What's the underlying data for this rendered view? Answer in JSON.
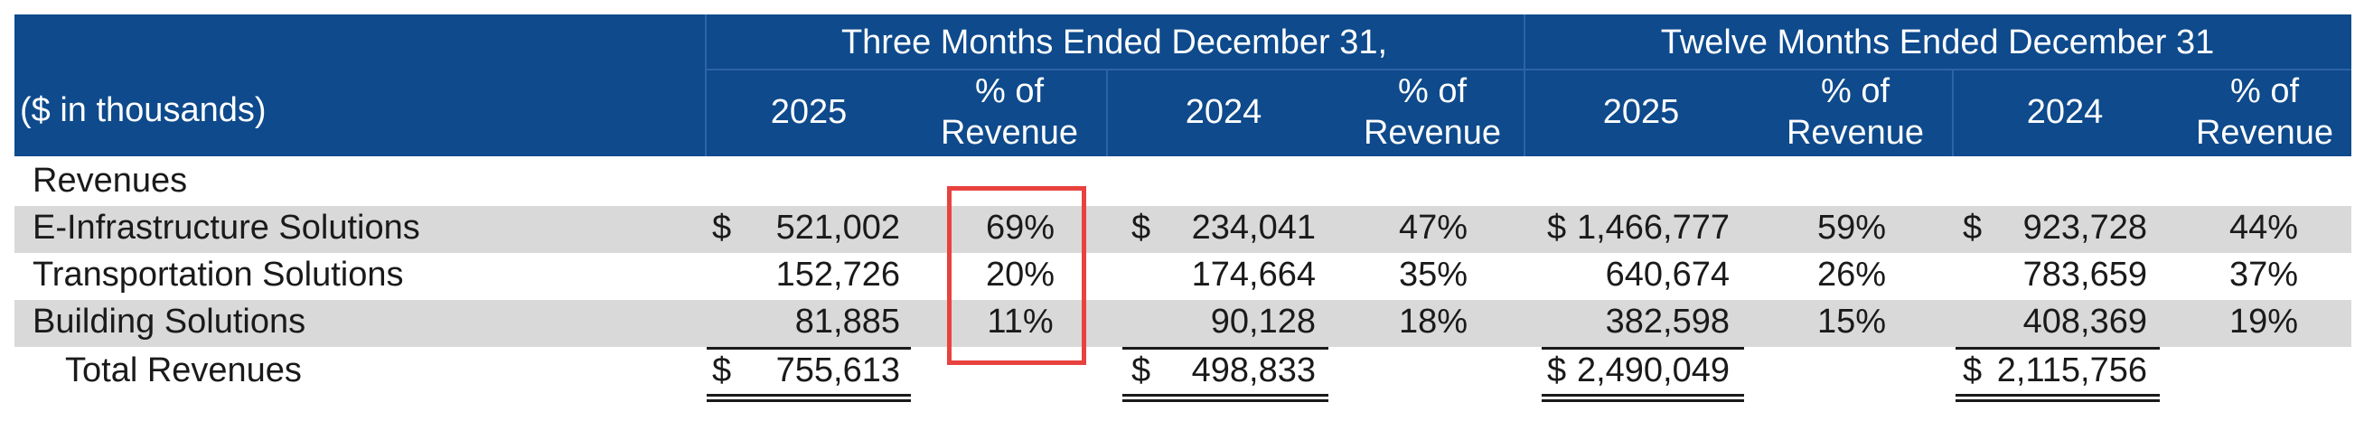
{
  "header": {
    "group_three_months": "Three Months Ended December 31,",
    "group_twelve_months": "Twelve Months Ended December 31",
    "units_label": "($ in thousands)",
    "columns": [
      {
        "label": "2025"
      },
      {
        "label": "% of\nRevenue"
      },
      {
        "label": "2024"
      },
      {
        "label": "% of\nRevenue"
      },
      {
        "label": "2025"
      },
      {
        "label": "% of\nRevenue"
      },
      {
        "label": "2024"
      },
      {
        "label": "% of\nRevenue"
      }
    ],
    "pct_line1": "% of",
    "pct_line2": "Revenue"
  },
  "currency_symbol": "$",
  "section_label": "Revenues",
  "rows": [
    {
      "label": "E-Infrastructure Solutions",
      "q2025": "521,002",
      "q2025_pct": "69%",
      "q2024": "234,041",
      "q2024_pct": "47%",
      "y2025": "1,466,777",
      "y2025_pct": "59%",
      "y2024": "923,728",
      "y2024_pct": "44%"
    },
    {
      "label": "Transportation Solutions",
      "q2025": "152,726",
      "q2025_pct": "20%",
      "q2024": "174,664",
      "q2024_pct": "35%",
      "y2025": "640,674",
      "y2025_pct": "26%",
      "y2024": "783,659",
      "y2024_pct": "37%"
    },
    {
      "label": "Building Solutions",
      "q2025": "81,885",
      "q2025_pct": "11%",
      "q2024": "90,128",
      "q2024_pct": "18%",
      "y2025": "382,598",
      "y2025_pct": "15%",
      "y2024": "408,369",
      "y2024_pct": "19%"
    }
  ],
  "total": {
    "label": "Total Revenues",
    "q2025": "755,613",
    "q2024": "498,833",
    "y2025": "2,490,049",
    "y2024": "2,115,756"
  },
  "colors": {
    "header_bg": "#0e4a8c",
    "band": "#d9d9d9",
    "highlight": "#e8423f"
  }
}
